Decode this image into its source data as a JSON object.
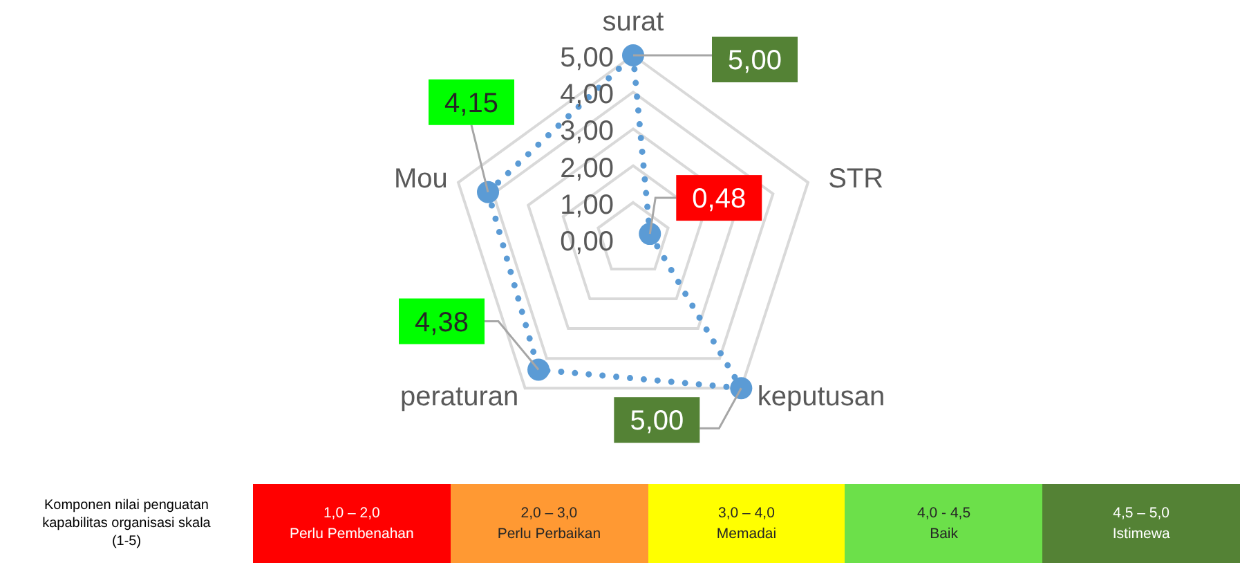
{
  "chart_data": [
    {
      "type": "radar",
      "categories": [
        "surat",
        "STR",
        "keputusan",
        "peraturan",
        "Mou"
      ],
      "series": [
        {
          "color": "#5b9bd5",
          "values": [
            5,
            0.48,
            5,
            4.38,
            4.15
          ],
          "value_labels": [
            "5,00",
            "0,48",
            "5,00",
            "4,38",
            "4,15"
          ]
        }
      ],
      "ylim": [
        0,
        5
      ],
      "yticks": [
        {
          "value": 0,
          "label": "0,00"
        },
        {
          "value": 1,
          "label": "1,00"
        },
        {
          "value": 2,
          "label": "2,00"
        },
        {
          "value": 3,
          "label": "3,00"
        },
        {
          "value": 4,
          "label": "4,00"
        },
        {
          "value": 5,
          "label": "5,00"
        }
      ],
      "grid": true,
      "marker": "circle",
      "line_style": "dotted"
    },
    {
      "type": "other",
      "title": "Komponen nilai penguatan kapabilitas organisasi skala (1-5)",
      "categories": [
        "1,0 – 2,0\nPerlu Pembenahan",
        "2,0 – 3,0\nPerlu Perbaikan",
        "3,0 – 4,0\nMemadai",
        "4,0 - 4,5\nBaik",
        "4,5 – 5,0\nIstimewa"
      ],
      "colors": [
        "#ff0000",
        "#ff9933",
        "#ffff00",
        "#6ce04a",
        "#548235"
      ]
    }
  ]
}
